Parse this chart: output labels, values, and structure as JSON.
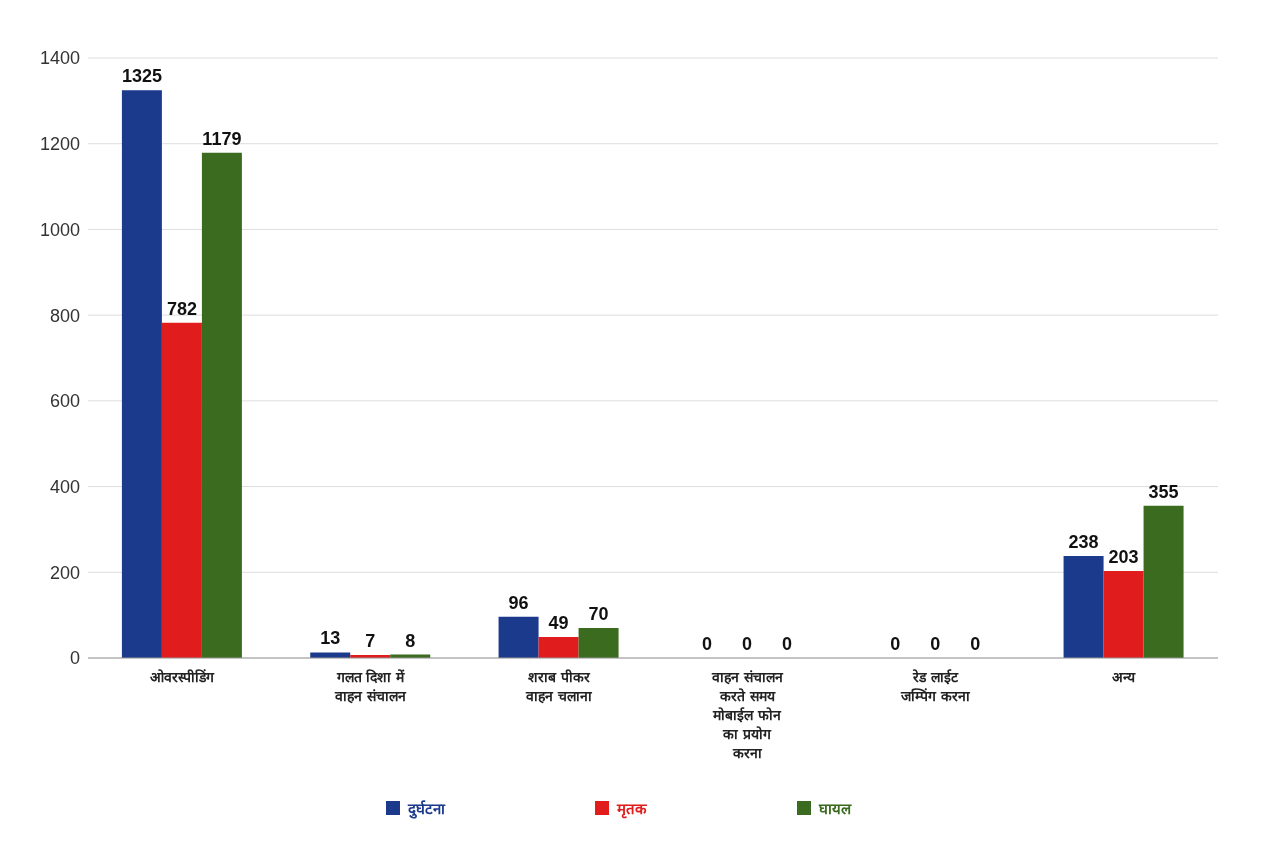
{
  "chart_data": {
    "type": "bar",
    "categories": [
      "ओवरस्पीडिंग",
      "गलत दिशा में वाहन संचालन",
      "शराब पीकर वाहन चलाना",
      "वाहन संचालन करते समय मोबाईल फोन का प्रयोग करना",
      "रेड लाईट जम्पिंग करना",
      "अन्य"
    ],
    "series": [
      {
        "name": "दुर्घटना",
        "color": "#1c3a8c",
        "values": [
          1325,
          13,
          96,
          0,
          0,
          238
        ]
      },
      {
        "name": "मृतक",
        "color": "#e01c1c",
        "values": [
          782,
          7,
          49,
          0,
          0,
          203
        ]
      },
      {
        "name": "घायल",
        "color": "#3b6b1e",
        "values": [
          1179,
          8,
          70,
          0,
          0,
          355
        ]
      }
    ],
    "ylim": [
      0,
      1400
    ],
    "yticks": [
      0,
      200,
      400,
      600,
      800,
      1000,
      1200,
      1400
    ],
    "grid": "y",
    "legend": "bottom",
    "data_labels": true
  }
}
